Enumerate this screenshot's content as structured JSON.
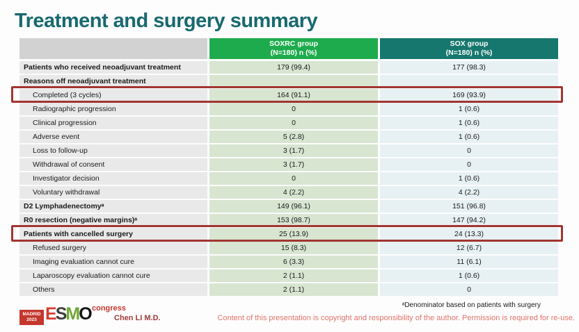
{
  "colors": {
    "title_teal": "#17696f",
    "header_green": "#1eab4d",
    "header_teal": "#16776e",
    "highlight_red": "#a23530",
    "copyright_red": "#e0736b"
  },
  "slide": {
    "title": "Treatment and surgery summary"
  },
  "table": {
    "header": {
      "soxrc": {
        "line1": "SOXRC group",
        "line2": "(N=180)  n (%)"
      },
      "sox": {
        "line1": "SOX group",
        "line2": "(N=180)  n (%)"
      }
    },
    "rows": [
      {
        "label": "Patients who received neoadjuvant treatment",
        "soxrc": "179 (99.4)",
        "sox": "177 (98.3)",
        "bold": true,
        "indent": false,
        "highlight": false
      },
      {
        "label": "Reasons off neoadjuvant treatment",
        "soxrc": "",
        "sox": "",
        "bold": true,
        "indent": false,
        "highlight": false
      },
      {
        "label": "Completed (3 cycles)",
        "soxrc": "164 (91.1)",
        "sox": "169 (93.9)",
        "bold": false,
        "indent": true,
        "highlight": true
      },
      {
        "label": "Radiographic progression",
        "soxrc": "0",
        "sox": "1 (0.6)",
        "bold": false,
        "indent": true,
        "highlight": false
      },
      {
        "label": "Clinical progression",
        "soxrc": "0",
        "sox": "1 (0.6)",
        "bold": false,
        "indent": true,
        "highlight": false
      },
      {
        "label": "Adverse event",
        "soxrc": "5 (2.8)",
        "sox": "1 (0.6)",
        "bold": false,
        "indent": true,
        "highlight": false
      },
      {
        "label": "Loss to follow-up",
        "soxrc": "3 (1.7)",
        "sox": "0",
        "bold": false,
        "indent": true,
        "highlight": false
      },
      {
        "label": "Withdrawal of consent",
        "soxrc": "3 (1.7)",
        "sox": "0",
        "bold": false,
        "indent": true,
        "highlight": false
      },
      {
        "label": "Investigator decision",
        "soxrc": "0",
        "sox": "1 (0.6)",
        "bold": false,
        "indent": true,
        "highlight": false
      },
      {
        "label": "Voluntary withdrawal",
        "soxrc": "4 (2.2)",
        "sox": "4 (2.2)",
        "bold": false,
        "indent": true,
        "highlight": false
      },
      {
        "label": "D2 Lymphadenectomyᵃ",
        "soxrc": "149 (96.1)",
        "sox": "151 (96.8)",
        "bold": true,
        "indent": false,
        "highlight": false
      },
      {
        "label": "R0 resection (negative margins)ᵃ",
        "soxrc": "153 (98.7)",
        "sox": "147 (94.2)",
        "bold": true,
        "indent": false,
        "highlight": false
      },
      {
        "label": "Patients with cancelled surgery",
        "soxrc": "25 (13.9)",
        "sox": "24 (13.3)",
        "bold": true,
        "indent": false,
        "highlight": true
      },
      {
        "label": "Refused surgery",
        "soxrc": "15 (8.3)",
        "sox": "12 (6.7)",
        "bold": false,
        "indent": true,
        "highlight": false
      },
      {
        "label": "Imaging evaluation cannot cure",
        "soxrc": "6 (3.3)",
        "sox": "11 (6.1)",
        "bold": false,
        "indent": true,
        "highlight": false
      },
      {
        "label": "Laparoscopy evaluation cannot cure",
        "soxrc": "2 (1.1)",
        "sox": "1 (0.6)",
        "bold": false,
        "indent": true,
        "highlight": false
      },
      {
        "label": "Others",
        "soxrc": "2 (1.1)",
        "sox": "0",
        "bold": false,
        "indent": true,
        "highlight": false
      }
    ]
  },
  "footer": {
    "footnote": "ᵃDenominator based on patients with surgery",
    "copyright": "Content of this presentation is copyright and responsibility of the author. Permission is required for re-use.",
    "author": "Chen LI M.D.",
    "logo": {
      "venue_line1": "MADRID",
      "venue_line2": "2023",
      "org_letters": [
        "E",
        "S",
        "M",
        "O"
      ],
      "congress": "congress"
    }
  }
}
